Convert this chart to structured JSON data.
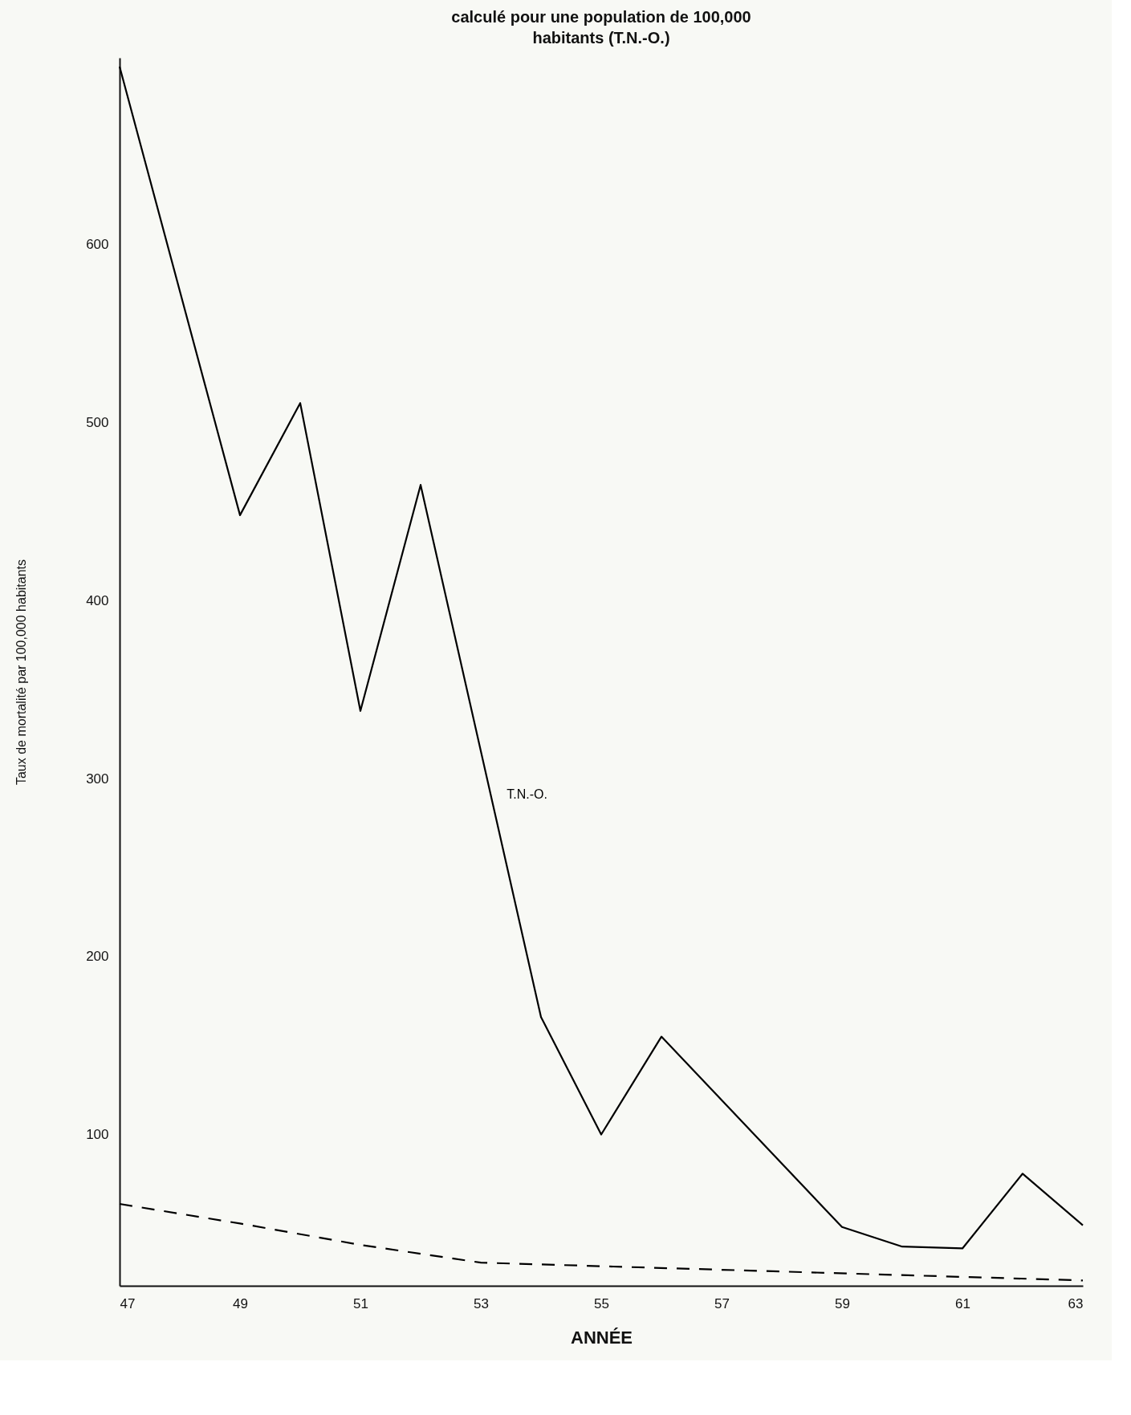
{
  "chart_data": {
    "type": "line",
    "title": "calculé pour une population de 100,000 habitants (T.N.-O.)",
    "xlabel": "ANNÉE",
    "ylabel": "Taux de mortalité par 100,000 habitants",
    "xlim": [
      47,
      63
    ],
    "xticks": [
      47,
      49,
      51,
      53,
      55,
      57,
      59,
      61,
      63
    ],
    "ylim": [
      15,
      705
    ],
    "yticks": [
      100,
      200,
      300,
      400,
      500,
      600
    ],
    "grid": false,
    "series": [
      {
        "name": "T.N.-O.",
        "color": "#000000",
        "line_style": "solid",
        "x": [
          47,
          49,
          50,
          51,
          52,
          54,
          55,
          56,
          59,
          60,
          61,
          62,
          63
        ],
        "values": [
          700,
          448,
          511,
          338,
          465,
          166,
          100,
          155,
          48,
          37,
          36,
          78,
          49
        ]
      },
      {
        "color": "#000000",
        "line_style": "dashed",
        "x": [
          47,
          49,
          51,
          53,
          57,
          63
        ],
        "values": [
          61,
          50,
          38,
          28,
          24,
          18
        ]
      }
    ]
  }
}
